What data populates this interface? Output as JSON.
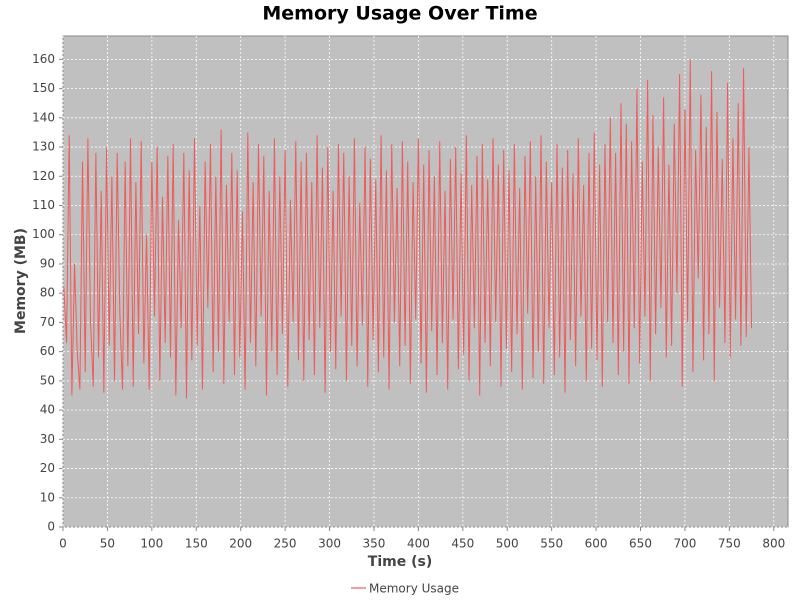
{
  "chart_data": {
    "type": "line",
    "title": "Memory Usage Over Time",
    "x_label": "Time (s)",
    "y_label": "Memory (MB)",
    "xlim": [
      0,
      816
    ],
    "ylim": [
      0,
      168
    ],
    "xticks": [
      0,
      50,
      100,
      150,
      200,
      250,
      300,
      350,
      400,
      450,
      500,
      550,
      600,
      650,
      700,
      750,
      800
    ],
    "yticks": [
      0,
      10,
      20,
      30,
      40,
      50,
      60,
      70,
      80,
      90,
      100,
      110,
      120,
      130,
      140,
      150,
      160
    ],
    "grid": true,
    "legend": "bottom",
    "x": [
      1,
      4,
      7,
      10,
      13,
      16,
      19,
      22,
      25,
      28,
      31,
      34,
      37,
      40,
      43,
      46,
      49,
      52,
      55,
      58,
      61,
      64,
      67,
      70,
      73,
      76,
      79,
      82,
      85,
      88,
      91,
      94,
      97,
      100,
      103,
      106,
      109,
      112,
      115,
      118,
      121,
      124,
      127,
      130,
      133,
      136,
      139,
      142,
      145,
      148,
      151,
      154,
      157,
      160,
      163,
      166,
      169,
      172,
      175,
      178,
      181,
      184,
      187,
      190,
      193,
      196,
      199,
      202,
      205,
      208,
      211,
      214,
      217,
      220,
      223,
      226,
      229,
      232,
      235,
      238,
      241,
      244,
      247,
      250,
      253,
      256,
      259,
      262,
      265,
      268,
      271,
      274,
      277,
      280,
      283,
      286,
      289,
      292,
      295,
      298,
      301,
      304,
      307,
      310,
      313,
      316,
      319,
      322,
      325,
      328,
      331,
      334,
      337,
      340,
      343,
      346,
      349,
      352,
      355,
      358,
      361,
      364,
      367,
      370,
      373,
      376,
      379,
      382,
      385,
      388,
      391,
      394,
      397,
      400,
      403,
      406,
      409,
      412,
      415,
      418,
      421,
      424,
      427,
      430,
      433,
      436,
      439,
      442,
      445,
      448,
      451,
      454,
      457,
      460,
      463,
      466,
      469,
      472,
      475,
      478,
      481,
      484,
      487,
      490,
      493,
      496,
      499,
      502,
      505,
      508,
      511,
      514,
      517,
      520,
      523,
      526,
      529,
      532,
      535,
      538,
      541,
      544,
      547,
      550,
      553,
      556,
      559,
      562,
      565,
      568,
      571,
      574,
      577,
      580,
      583,
      586,
      589,
      592,
      595,
      598,
      601,
      604,
      607,
      610,
      613,
      616,
      619,
      622,
      625,
      628,
      631,
      634,
      637,
      640,
      643,
      646,
      649,
      652,
      655,
      658,
      661,
      664,
      667,
      670,
      673,
      676,
      679,
      682,
      685,
      688,
      691,
      694,
      697,
      700,
      703,
      706,
      709,
      712,
      715,
      718,
      721,
      724,
      727,
      730,
      733,
      736,
      739,
      742,
      745,
      748,
      751,
      754,
      757,
      760,
      763,
      766,
      769,
      772,
      775
    ],
    "series": [
      {
        "name": "Memory Usage",
        "color": "#f05a5a",
        "values": [
          82,
          63,
          134,
          45,
          90,
          60,
          47,
          125,
          53,
          133,
          70,
          48,
          128,
          58,
          115,
          46,
          130,
          62,
          120,
          50,
          128,
          73,
          47,
          125,
          55,
          133,
          48,
          118,
          66,
          132,
          56,
          100,
          47,
          125,
          72,
          130,
          50,
          113,
          63,
          127,
          58,
          131,
          45,
          105,
          68,
          128,
          44,
          122,
          57,
          133,
          62,
          110,
          47,
          125,
          75,
          131,
          53,
          120,
          60,
          136,
          49,
          117,
          70,
          128,
          52,
          122,
          58,
          108,
          47,
          135,
          63,
          118,
          55,
          131,
          72,
          127,
          45,
          115,
          60,
          133,
          52,
          120,
          66,
          129,
          48,
          112,
          70,
          132,
          57,
          125,
          50,
          128,
          64,
          118,
          52,
          134,
          68,
          123,
          46,
          130,
          60,
          115,
          54,
          131,
          72,
          128,
          50,
          120,
          62,
          133,
          55,
          111,
          69,
          130,
          48,
          126,
          64,
          119,
          53,
          134,
          58,
          122,
          47,
          131,
          70,
          116,
          55,
          132,
          62,
          125,
          49,
          118,
          71,
          133,
          56,
          124,
          46,
          129,
          67,
          120,
          52,
          132,
          63,
          115,
          47,
          126,
          71,
          130,
          54,
          121,
          59,
          134,
          50,
          117,
          68,
          127,
          45,
          131,
          63,
          119,
          55,
          133,
          70,
          124,
          48,
          129,
          61,
          122,
          53,
          131,
          66,
          116,
          47,
          127,
          73,
          132,
          51,
          120,
          60,
          134,
          49,
          125,
          68,
          118,
          52,
          131,
          58,
          123,
          46,
          129,
          64,
          121,
          55,
          133,
          72,
          117,
          50,
          128,
          61,
          135,
          57,
          124,
          48,
          131,
          70,
          140,
          63,
          128,
          52,
          145,
          60,
          138,
          49,
          132,
          68,
          150,
          56,
          125,
          72,
          153,
          50,
          141,
          66,
          130,
          75,
          147,
          58,
          124,
          62,
          138,
          80,
          155,
          48,
          143,
          70,
          160,
          53,
          129,
          85,
          148,
          57,
          137,
          66,
          156,
          50,
          142,
          75,
          126,
          63,
          152,
          58,
          133,
          71,
          145,
          62,
          157,
          65,
          130,
          68
        ]
      }
    ]
  }
}
